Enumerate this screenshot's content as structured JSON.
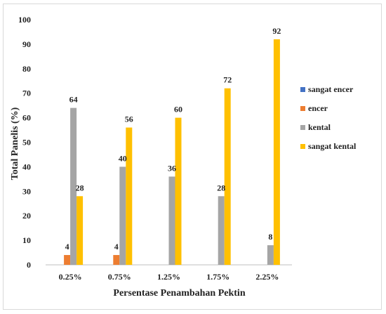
{
  "chart_data": {
    "type": "bar",
    "title": "",
    "xlabel": "Persentase Penambahan Pektin",
    "ylabel": "Total Panelis (%)",
    "ylim": [
      0,
      100
    ],
    "yticks": [
      "0",
      "10",
      "20",
      "30",
      "40",
      "50",
      "60",
      "70",
      "80",
      "90",
      "100"
    ],
    "grid": false,
    "legend_position": "right",
    "categories": [
      "0.25%",
      "0.75%",
      "1.25%",
      "1.75%",
      "2.25%"
    ],
    "series": [
      {
        "name": "sangat encer",
        "color": "#4472c4",
        "values": [
          0,
          0,
          0,
          0,
          0
        ],
        "labels": [
          "",
          "",
          "",
          "",
          ""
        ]
      },
      {
        "name": "encer",
        "color": "#ed7d31",
        "values": [
          4,
          4,
          0,
          0,
          0
        ],
        "labels": [
          "4",
          "4",
          "",
          "",
          ""
        ]
      },
      {
        "name": "kental",
        "color": "#a5a5a5",
        "values": [
          64,
          40,
          36,
          28,
          8
        ],
        "labels": [
          "64",
          "40",
          "36",
          "28",
          "8"
        ]
      },
      {
        "name": "sangat kental",
        "color": "#ffc000",
        "values": [
          28,
          56,
          60,
          72,
          92
        ],
        "labels": [
          "28",
          "56",
          "60",
          "72",
          "92"
        ]
      }
    ]
  }
}
